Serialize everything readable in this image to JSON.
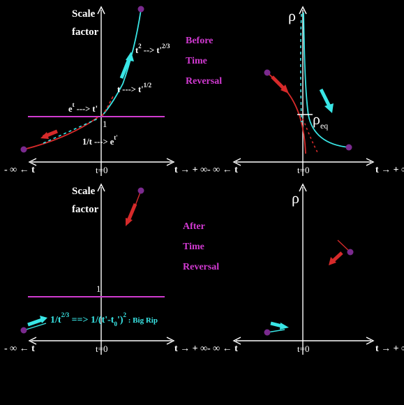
{
  "colors": {
    "background": "#000000",
    "axis": "#ffffff",
    "cyan": "#39e6e6",
    "red": "#d62a2a",
    "magenta": "#cf3bcf",
    "endpoint": "#7a2a8e"
  },
  "top_left": {
    "ylabel_line1": "Scale",
    "ylabel_line2": "factor",
    "t_squared": "t",
    "t_squared_exp": "2",
    "t_23_arrow": " --> t'",
    "t_23_exp": "2/3",
    "t_half": "t ---> t'",
    "t_half_exp": "1/2",
    "e_t": "e",
    "e_t_exp": "t",
    "e_t_arrow": " ---> t'",
    "one_label": "1",
    "inv_t": "1/t ---> e",
    "inv_t_exp": "t'",
    "x_left": "- ∞ ← t",
    "x_zero": "t=0",
    "x_right": "t → + ∞"
  },
  "top_right": {
    "rho": "ρ",
    "rho_eq": "ρ",
    "rho_eq_sub": "eq",
    "x_left": "- ∞ ← t",
    "x_zero": "t=0",
    "x_right": "t → + ∞"
  },
  "before_label": [
    "Before",
    "Time",
    "Reversal"
  ],
  "bottom_left": {
    "ylabel_line1": "Scale",
    "ylabel_line2": "factor",
    "one_label": "1",
    "bigrip_a": "1/t",
    "bigrip_a_exp": "2/3",
    "bigrip_b": " ==> 1/(t'-t",
    "bigrip_b_sub": "0",
    "bigrip_c": "')",
    "bigrip_c_exp": "2",
    "bigrip_d": " : Big Rip",
    "x_left": "- ∞ ← t",
    "x_zero": "t=0",
    "x_right": "t → + ∞"
  },
  "bottom_right": {
    "rho": "ρ",
    "x_left": "- ∞ ← t",
    "x_zero": "t=0",
    "x_right": "t → + ∞"
  },
  "after_label": [
    "After",
    "Time",
    "Reversal"
  ],
  "icons": [
    "arrow-icon",
    "endpoint-dot-icon"
  ]
}
